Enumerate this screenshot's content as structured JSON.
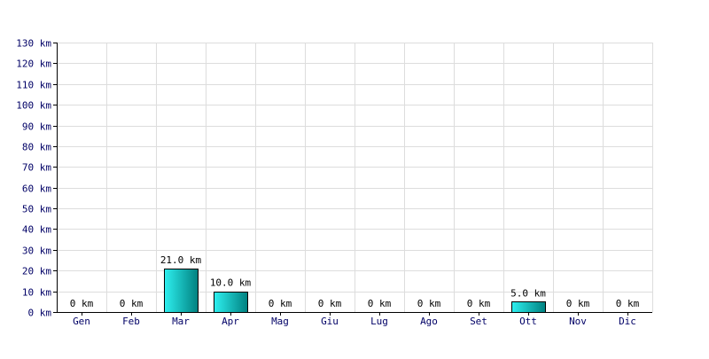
{
  "chart_data": {
    "type": "bar",
    "categories": [
      "Gen",
      "Feb",
      "Mar",
      "Apr",
      "Mag",
      "Giu",
      "Lug",
      "Ago",
      "Set",
      "Ott",
      "Nov",
      "Dic"
    ],
    "values": [
      0,
      0,
      21.0,
      10.0,
      0,
      0,
      0,
      0,
      0,
      5.0,
      0,
      0
    ],
    "data_labels": [
      "0 km",
      "0 km",
      "21.0 km",
      "10.0 km",
      "0 km",
      "0 km",
      "0 km",
      "0 km",
      "0 km",
      "5.0 km",
      "0 km",
      "0 km"
    ],
    "unit": "km",
    "ylim": [
      0,
      130
    ],
    "y_ticks": [
      0,
      10,
      20,
      30,
      40,
      50,
      60,
      70,
      80,
      90,
      100,
      110,
      120,
      130
    ],
    "y_tick_labels": [
      "0 km",
      "10 km",
      "20 km",
      "30 km",
      "40 km",
      "50 km",
      "60 km",
      "70 km",
      "80 km",
      "90 km",
      "100 km",
      "110 km",
      "120 km",
      "130 km"
    ],
    "grid": true,
    "title": "",
    "xlabel": "",
    "ylabel": "",
    "colors": {
      "bar_light": "#2ef0f0",
      "bar_dark": "#00807f",
      "bar_border": "#000000",
      "grid": "#dddddd",
      "axis": "#000000",
      "tick_text": "#000066"
    }
  }
}
